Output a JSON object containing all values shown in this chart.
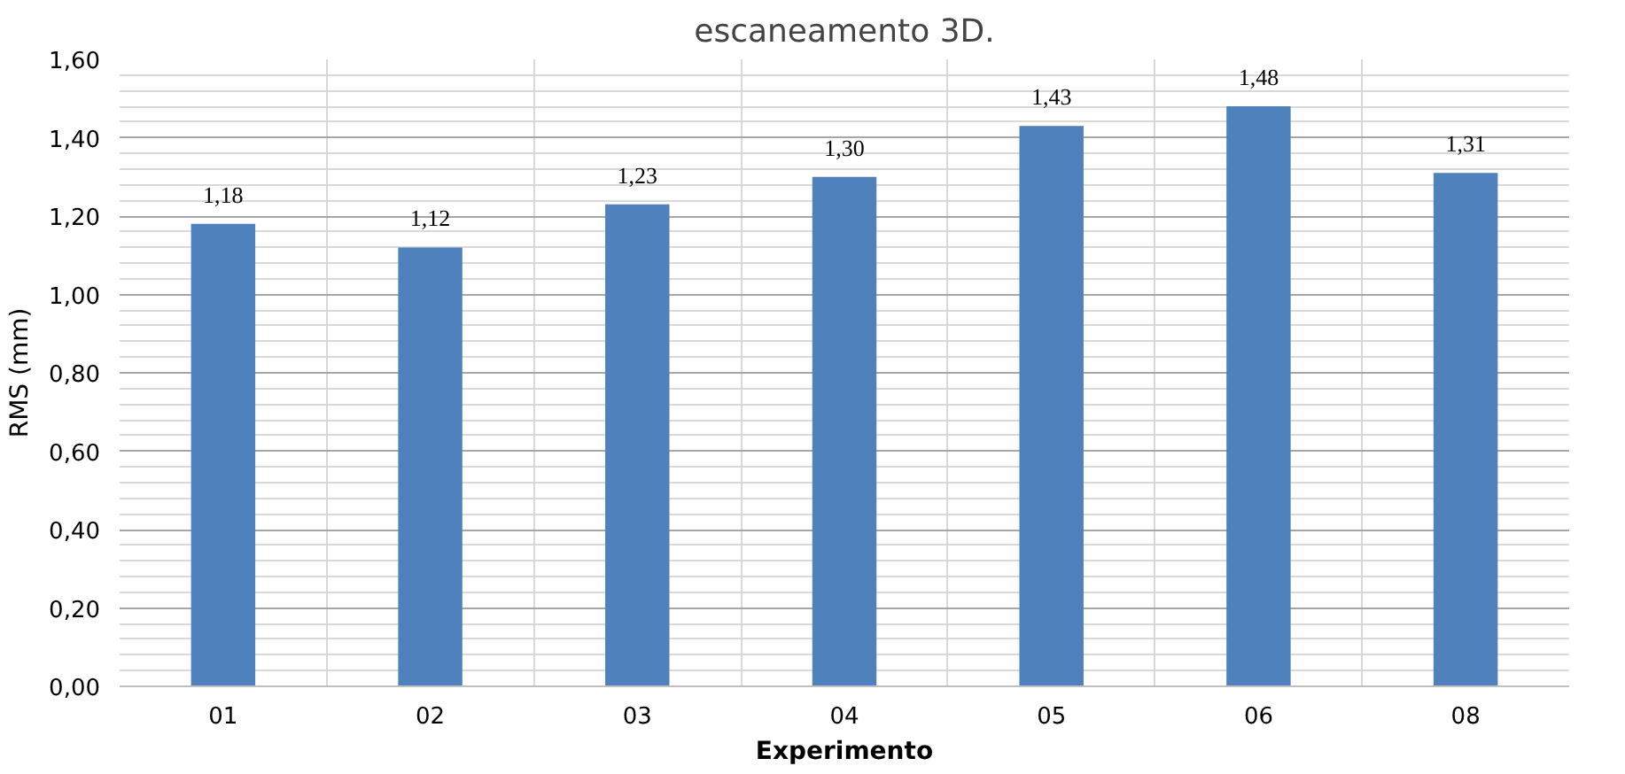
{
  "chart_data": {
    "type": "bar",
    "title": "escaneamento 3D.",
    "xlabel": "Experimento",
    "ylabel": "RMS (mm)",
    "categories": [
      "01",
      "02",
      "03",
      "04",
      "05",
      "06",
      "08"
    ],
    "values": [
      1.18,
      1.12,
      1.23,
      1.3,
      1.43,
      1.48,
      1.31
    ],
    "value_labels": [
      "1,18",
      "1,12",
      "1,23",
      "1,30",
      "1,43",
      "1,48",
      "1,31"
    ],
    "color": "#4f81bd",
    "ylim": [
      0,
      1.6
    ],
    "yticks": [
      {
        "value": 0,
        "label": "0,00"
      },
      {
        "value": 0.2,
        "label": "0,20"
      },
      {
        "value": 0.4,
        "label": "0,40"
      },
      {
        "value": 0.6,
        "label": "0,60"
      },
      {
        "value": 0.8,
        "label": "0,80"
      },
      {
        "value": 1.0,
        "label": "1,00"
      },
      {
        "value": 1.2,
        "label": "1,20"
      },
      {
        "value": 1.4,
        "label": "1,40"
      },
      {
        "value": 1.6,
        "label": "1,60"
      }
    ],
    "grid": true
  }
}
